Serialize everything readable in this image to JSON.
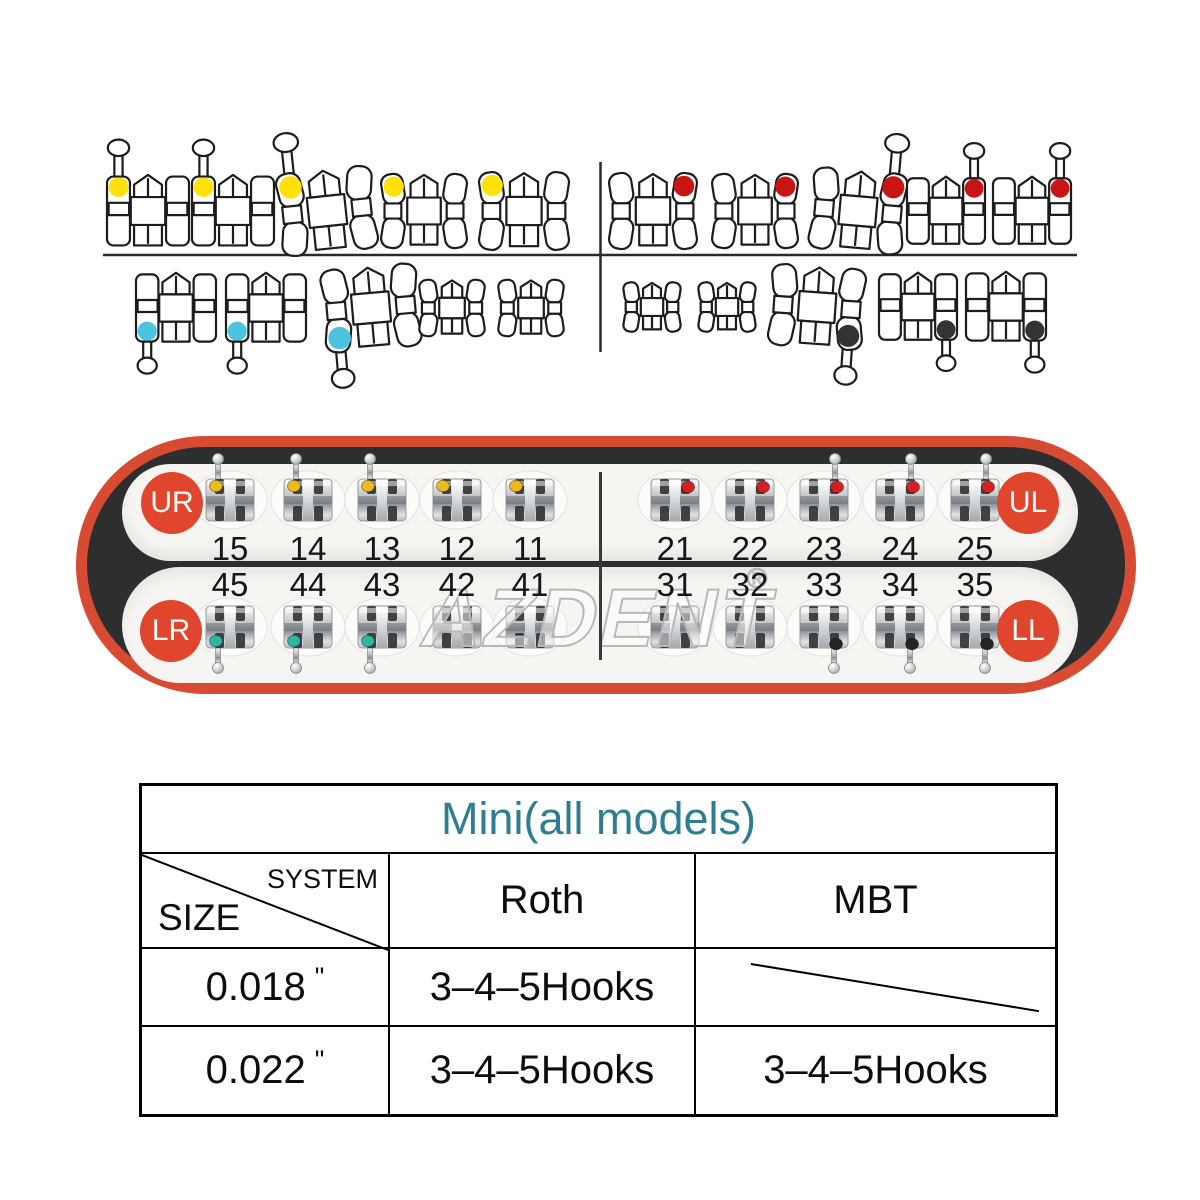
{
  "diagram": {
    "quadrants": [
      {
        "id": "upper-left-drawings",
        "dot_color": "#ffe10a",
        "dot_corner": "tl",
        "hook_dir": "up",
        "hooks_on": [
          0,
          1,
          2
        ],
        "dots_on": [
          0,
          1,
          2,
          3,
          4
        ]
      },
      {
        "id": "upper-right-drawings",
        "dot_color": "#c81414",
        "dot_corner": "tr",
        "hook_dir": "up",
        "hooks_on": [
          2,
          3,
          4
        ],
        "dots_on": [
          0,
          1,
          2,
          3,
          4
        ]
      },
      {
        "id": "lower-left-drawings",
        "dot_color": "#4cc4e0",
        "dot_corner": "bl",
        "hook_dir": "down",
        "hooks_on": [
          0,
          1,
          2
        ],
        "dots_on": [
          0,
          1,
          2
        ]
      },
      {
        "id": "lower-right-drawings",
        "dot_color": "#333333",
        "dot_corner": "br",
        "hook_dir": "down",
        "hooks_on": [
          2,
          3,
          4
        ],
        "dots_on": [
          2,
          3,
          4
        ]
      }
    ]
  },
  "tray": {
    "border_color": "#d84b33",
    "inner_color": "#2c2f2e",
    "circle_color": "#e0462e",
    "quadrant_labels": {
      "left_top": "UR",
      "right_top": "UL",
      "left_bottom": "LR",
      "right_bottom": "LL"
    },
    "teeth": {
      "top_left": [
        "15",
        "14",
        "13",
        "12",
        "11"
      ],
      "top_right": [
        "21",
        "22",
        "23",
        "24",
        "25"
      ],
      "bottom_left": [
        "45",
        "44",
        "43",
        "42",
        "41"
      ],
      "bottom_right": [
        "31",
        "32",
        "33",
        "34",
        "35"
      ]
    },
    "markers": {
      "top_left": "#edb91e",
      "top_right": "#d32121",
      "bottom_left": "#2fb4a3",
      "bottom_right": "#242424"
    },
    "marker_hooks": {
      "top_left": [
        0,
        1,
        2
      ],
      "top_right": [
        2,
        3,
        4
      ],
      "bottom_left": [
        0,
        1,
        2
      ],
      "bottom_right": [
        2,
        3,
        4
      ],
      "marked_top_left": [
        0,
        1,
        2,
        3,
        4
      ],
      "marked_top_right": [
        0,
        1,
        2,
        3,
        4
      ],
      "marked_bottom_left": [
        0,
        1,
        2
      ],
      "marked_bottom_right": [
        2,
        3,
        4
      ]
    },
    "watermark": "AZDENT",
    "registered": "®"
  },
  "table": {
    "title": "Mini(all models)",
    "title_color": "#2e7e93",
    "corner": {
      "top_label": "SYSTEM",
      "bottom_label": "SIZE"
    },
    "columns": [
      "Roth",
      "MBT"
    ],
    "rows": [
      {
        "size": "0.018",
        "unit": "\"",
        "roth": "3–4–5Hooks",
        "mbt": null
      },
      {
        "size": "0.022",
        "unit": "\"",
        "roth": "3–4–5Hooks",
        "mbt": "3–4–5Hooks"
      }
    ]
  }
}
